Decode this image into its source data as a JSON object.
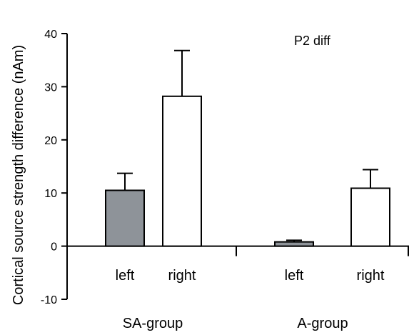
{
  "chart_data": {
    "type": "bar",
    "annotation": "P2 diff",
    "ylabel": "Cortical source strength difference (nAm)",
    "ylim": [
      -10,
      40
    ],
    "yticks": [
      -10,
      0,
      10,
      20,
      30,
      40
    ],
    "ytick_labels": [
      "-10",
      "0",
      "10",
      "20",
      "30",
      "40"
    ],
    "grid": false,
    "legend": "none",
    "groups": [
      {
        "name": "SA-group",
        "bars": [
          {
            "category": "left",
            "value": 10.5,
            "error": 3.2,
            "fill": "#8e9399"
          },
          {
            "category": "right",
            "value": 28.2,
            "error": 8.6,
            "fill": "#ffffff"
          }
        ]
      },
      {
        "name": "A-group",
        "bars": [
          {
            "category": "left",
            "value": 0.8,
            "error": 0.3,
            "fill": "#8e9399"
          },
          {
            "category": "right",
            "value": 10.9,
            "error": 3.5,
            "fill": "#ffffff"
          }
        ]
      }
    ]
  }
}
